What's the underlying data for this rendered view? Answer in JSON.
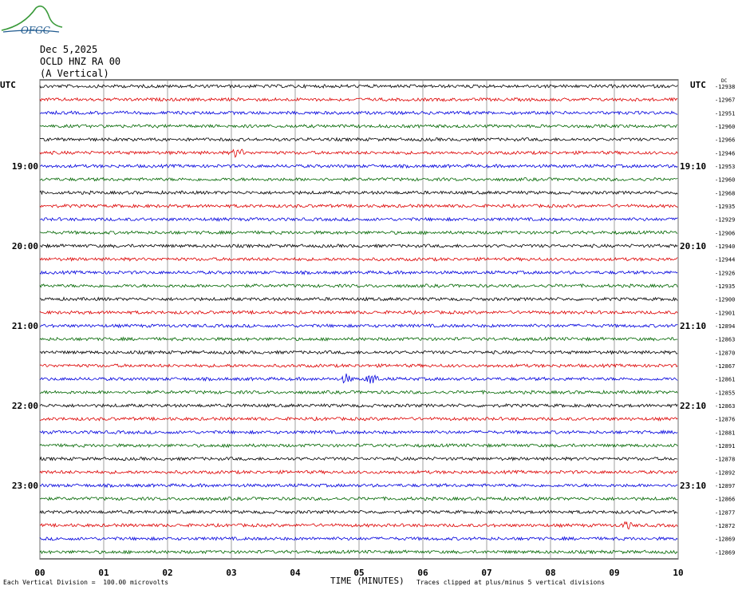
{
  "logo": {
    "text": "OFGC",
    "color": "#1f5a8f",
    "accent": "#3a9a3a"
  },
  "header": {
    "date": "Dec 5,2025",
    "station": "OCLD HNZ RA 00",
    "component": "(A Vertical)"
  },
  "footer": {
    "scale_note": "Each Vertical Division =  100.00 microvolts",
    "clip_note": "Traces clipped at plus/minus 5 vertical divisions"
  },
  "chart_data": {
    "type": "line",
    "title": "",
    "xlabel": "TIME (MINUTES)",
    "ylabel": "",
    "xlim": [
      0,
      10
    ],
    "x_ticks": [
      "00",
      "01",
      "02",
      "03",
      "04",
      "05",
      "06",
      "07",
      "08",
      "09",
      "10"
    ],
    "left_axis_label": "UTC",
    "right_axis_label": "UTC",
    "left_time_labels": [
      {
        "row": 6,
        "label": "19:00"
      },
      {
        "row": 12,
        "label": "20:00"
      },
      {
        "row": 18,
        "label": "21:00"
      },
      {
        "row": 24,
        "label": "22:00"
      },
      {
        "row": 30,
        "label": "23:00"
      }
    ],
    "right_time_labels": [
      {
        "row": 6,
        "label": "19:10"
      },
      {
        "row": 12,
        "label": "20:10"
      },
      {
        "row": 18,
        "label": "21:10"
      },
      {
        "row": 24,
        "label": "22:10"
      },
      {
        "row": 30,
        "label": "23:10"
      }
    ],
    "row_colors": [
      "#000000",
      "#dd0000",
      "#0000dd",
      "#006600"
    ],
    "right_values": [
      "-12938",
      "-12967",
      "-12951",
      "-12960",
      "-12966",
      "-12946",
      "-12953",
      "-12960",
      "-12968",
      "-12935",
      "-12929",
      "-12906",
      "-12940",
      "-12944",
      "-12926",
      "-12935",
      "-12900",
      "-12901",
      "-12894",
      "-12863",
      "-12870",
      "-12867",
      "-12861",
      "-12855",
      "-12863",
      "-12876",
      "-12881",
      "-12891",
      "-12878",
      "-12892",
      "-12897",
      "-12866",
      "-12877",
      "-12872",
      "-12869",
      "-12869"
    ],
    "right_top_marker": "DC",
    "events": [
      {
        "row": 5,
        "x": 3.1,
        "amplitude": 6
      },
      {
        "row": 22,
        "x": 4.8,
        "amplitude": 5
      },
      {
        "row": 22,
        "x": 5.2,
        "amplitude": 7
      },
      {
        "row": 33,
        "x": 9.2,
        "amplitude": 4
      }
    ],
    "grid": true
  }
}
